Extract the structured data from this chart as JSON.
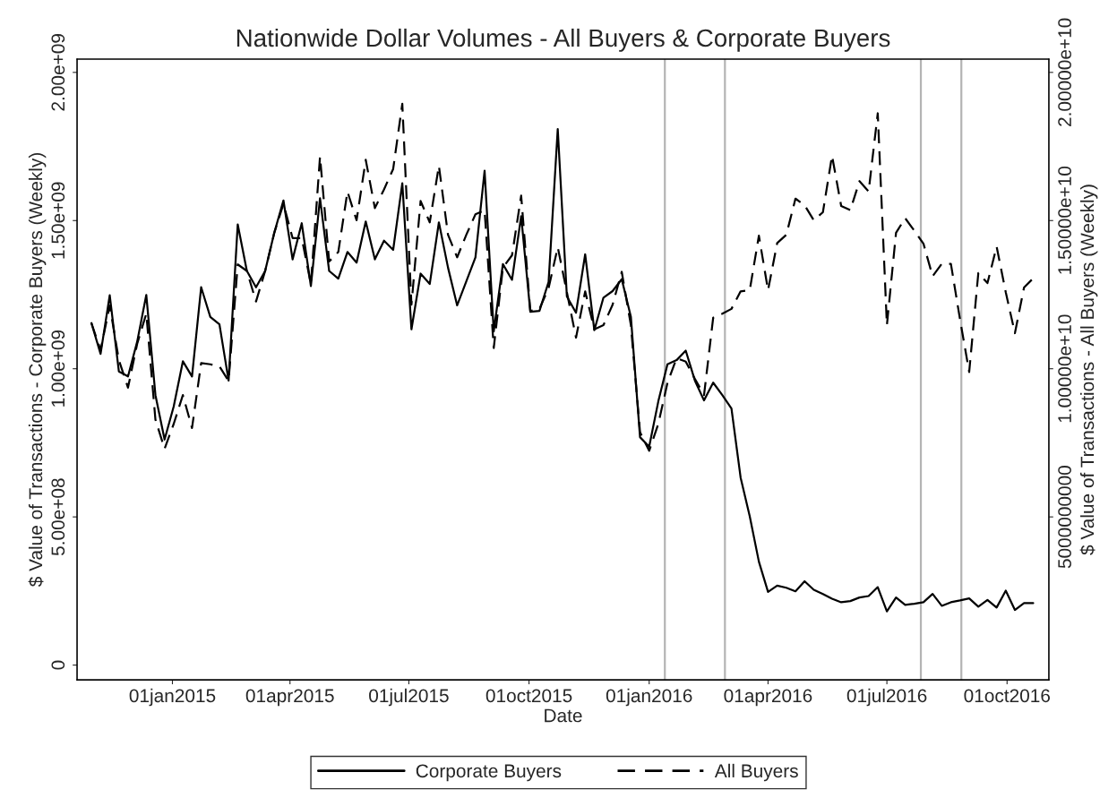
{
  "chart_data": {
    "type": "line",
    "title": "Nationwide Dollar Volumes - All Buyers & Corporate Buyers",
    "xlabel": "Date",
    "ylabel": "$ Value of Transactions - Corporate Buyers (Weekly)",
    "y2label": "$ Value of Transactions - All Buyers (Weekly)",
    "x": [
      "2014-10-31",
      "2014-11-07",
      "2014-11-14",
      "2014-11-21",
      "2014-11-28",
      "2014-12-05",
      "2014-12-12",
      "2014-12-19",
      "2014-12-26",
      "2015-01-02",
      "2015-01-09",
      "2015-01-16",
      "2015-01-23",
      "2015-01-30",
      "2015-02-06",
      "2015-02-13",
      "2015-02-20",
      "2015-02-27",
      "2015-03-06",
      "2015-03-13",
      "2015-03-20",
      "2015-03-27",
      "2015-04-03",
      "2015-04-10",
      "2015-04-17",
      "2015-04-24",
      "2015-05-01",
      "2015-05-08",
      "2015-05-15",
      "2015-05-22",
      "2015-05-29",
      "2015-06-05",
      "2015-06-12",
      "2015-06-19",
      "2015-06-26",
      "2015-07-03",
      "2015-07-10",
      "2015-07-17",
      "2015-07-24",
      "2015-07-31",
      "2015-08-07",
      "2015-08-14",
      "2015-08-21",
      "2015-08-28",
      "2015-09-04",
      "2015-09-11",
      "2015-09-18",
      "2015-09-25",
      "2015-10-02",
      "2015-10-09",
      "2015-10-16",
      "2015-10-23",
      "2015-10-30",
      "2015-11-06",
      "2015-11-13",
      "2015-11-20",
      "2015-11-27",
      "2015-12-04",
      "2015-12-11",
      "2015-12-18",
      "2015-12-25",
      "2016-01-01",
      "2016-01-08",
      "2016-01-15",
      "2016-01-22",
      "2016-01-29",
      "2016-02-05",
      "2016-02-12",
      "2016-02-19",
      "2016-02-26",
      "2016-03-04",
      "2016-03-11",
      "2016-03-18",
      "2016-03-25",
      "2016-04-01",
      "2016-04-08",
      "2016-04-15",
      "2016-04-22",
      "2016-04-29",
      "2016-05-06",
      "2016-05-13",
      "2016-05-20",
      "2016-05-27",
      "2016-06-03",
      "2016-06-10",
      "2016-06-17",
      "2016-06-24",
      "2016-07-01",
      "2016-07-08",
      "2016-07-15",
      "2016-07-22",
      "2016-07-29",
      "2016-08-05",
      "2016-08-12",
      "2016-08-19",
      "2016-08-26",
      "2016-09-02",
      "2016-09-09",
      "2016-09-16",
      "2016-09-23",
      "2016-09-30",
      "2016-10-07",
      "2016-10-14",
      "2016-10-21"
    ],
    "series": [
      {
        "name": "Corporate Buyers",
        "color": "#000000",
        "line_style": "solid",
        "values": [
          1154000000.0,
          1050000000.0,
          1248000000.0,
          991000000.0,
          974000000.0,
          1091000000.0,
          1249000000.0,
          911000000.0,
          761000000.0,
          873000000.0,
          1025000000.0,
          974000000.0,
          1275000000.0,
          1175000000.0,
          1150000000.0,
          960000000.0,
          1487000000.0,
          1330000000.0,
          1275000000.0,
          1330000000.0,
          1459000000.0,
          1568000000.0,
          1369000000.0,
          1491000000.0,
          1279000000.0,
          1575000000.0,
          1330000000.0,
          1304000000.0,
          1394000000.0,
          1358000000.0,
          1497000000.0,
          1369000000.0,
          1432000000.0,
          1401000000.0,
          1626000000.0,
          1133000000.0,
          1321000000.0,
          1286000000.0,
          1494000000.0,
          1341000000.0,
          1214000000.0,
          1295000000.0,
          1376000000.0,
          1668000000.0,
          1126000000.0,
          1353000000.0,
          1300000000.0,
          1515000000.0,
          1192000000.0,
          1195000000.0,
          1293000000.0,
          1809000000.0,
          1244000000.0,
          1189000000.0,
          1386000000.0,
          1130000000.0,
          1240000000.0,
          1262000000.0,
          1302000000.0,
          1175000000.0,
          769000000.0,
          737000000.0,
          890000000.0,
          1015000000.0,
          1029000000.0,
          1061000000.0,
          960000000.0,
          893000000.0,
          953000000.0,
          911000000.0,
          866000000.0,
          633000000.0,
          502000000.0,
          349000000.0,
          247000000.0,
          268000000.0,
          261000000.0,
          249000000.0,
          283000000.0,
          254000000.0,
          240000000.0,
          224000000.0,
          212000000.0,
          216000000.0,
          228000000.0,
          233000000.0,
          263000000.0,
          181000000.0,
          228000000.0,
          203000000.0,
          207000000.0,
          212000000.0,
          240000000.0,
          200000000.0,
          212000000.0,
          218000000.0,
          225000000.0,
          197000000.0,
          220000000.0,
          194000000.0,
          251000000.0,
          186000000.0,
          209000000.0,
          209000000.0
        ]
      },
      {
        "name": "All Buyers",
        "color": "#000000",
        "line_style": "dashed",
        "axis": "y2",
        "values": [
          11540000000.0,
          10630000000.0,
          12130000000.0,
          10290000000.0,
          9360000000.0,
          10840000000.0,
          11860000000.0,
          8280000000.0,
          7300000000.0,
          8140000000.0,
          9110000000.0,
          8000000000.0,
          10190000000.0,
          10150000000.0,
          10080000000.0,
          9590000000.0,
          13520000000.0,
          13300000000.0,
          12270000000.0,
          13300000000.0,
          14590000000.0,
          15560000000.0,
          14410000000.0,
          14410000000.0,
          12860000000.0,
          17160000000.0,
          13620000000.0,
          13940000000.0,
          15980000000.0,
          15010000000.0,
          17050000000.0,
          15420000000.0,
          16050000000.0,
          16740000000.0,
          18940000000.0,
          12160000000.0,
          15660000000.0,
          14940000000.0,
          16850000000.0,
          14520000000.0,
          13760000000.0,
          14520000000.0,
          15210000000.0,
          15350000000.0,
          10700000000.0,
          13410000000.0,
          13830000000.0,
          15840000000.0,
          11950000000.0,
          12020000000.0,
          12720000000.0,
          14100000000.0,
          12580000000.0,
          11050000000.0,
          12610000000.0,
          11330000000.0,
          11470000000.0,
          12160000000.0,
          13270000000.0,
          11470000000.0,
          7860000000.0,
          7230000000.0,
          8140000000.0,
          9520000000.0,
          10360000000.0,
          10240000000.0,
          9660000000.0,
          9110000000.0,
          11720000000.0,
          11860000000.0,
          12020000000.0,
          12610000000.0,
          12650000000.0,
          14490000000.0,
          12650000000.0,
          14240000000.0,
          14520000000.0,
          15740000000.0,
          15520000000.0,
          15010000000.0,
          15280000000.0,
          17190000000.0,
          15490000000.0,
          15350000000.0,
          16330000000.0,
          15980000000.0,
          18620000000.0,
          11470000000.0,
          14590000000.0,
          15080000000.0,
          14660000000.0,
          14220000000.0,
          13120000000.0,
          13540000000.0,
          13540000000.0,
          11660000000.0,
          9890000000.0,
          13230000000.0,
          12890000000.0,
          14120000000.0,
          12580000000.0,
          11200000000.0,
          12740000000.0,
          13050000000.0
        ]
      }
    ],
    "xlim": [
      "2014-10-20",
      "2016-11-02"
    ],
    "xticks": [
      {
        "value": "2015-01-01",
        "label": "01jan2015"
      },
      {
        "value": "2015-04-01",
        "label": "01apr2015"
      },
      {
        "value": "2015-07-01",
        "label": "01jul2015"
      },
      {
        "value": "2015-10-01",
        "label": "01oct2015"
      },
      {
        "value": "2016-01-01",
        "label": "01jan2016"
      },
      {
        "value": "2016-04-01",
        "label": "01apr2016"
      },
      {
        "value": "2016-07-01",
        "label": "01jul2016"
      },
      {
        "value": "2016-10-01",
        "label": "01oct2016"
      }
    ],
    "ylim": [
      -50000000.0,
      2045000000.0
    ],
    "yticks": [
      0,
      {
        "value": 500000000.0,
        "label": "5.00e+08"
      },
      {
        "value": 1000000000.0,
        "label": "1.00e+09"
      },
      {
        "value": 1500000000.0,
        "label": "1.50e+09"
      },
      {
        "value": 2000000000.0,
        "label": "2.00e+09"
      }
    ],
    "y2lim": [
      -500000000.0,
      20450000000.0
    ],
    "y2ticks": [
      5000000000,
      {
        "value": 10000000000.0,
        "label": "1.00000e+10"
      },
      {
        "value": 15000000000.0,
        "label": "1.50000e+10"
      },
      {
        "value": 20000000000.0,
        "label": "2.00000e+10"
      }
    ],
    "ref_lines": [
      {
        "axis": "x",
        "value": "2016-01-13",
        "color": "#b4b4b4"
      },
      {
        "axis": "x",
        "value": "2016-02-28",
        "color": "#b4b4b4"
      },
      {
        "axis": "x",
        "value": "2016-07-27",
        "color": "#b4b4b4"
      },
      {
        "axis": "x",
        "value": "2016-08-27",
        "color": "#b4b4b4"
      }
    ],
    "grid": false,
    "legend": "bottom"
  }
}
